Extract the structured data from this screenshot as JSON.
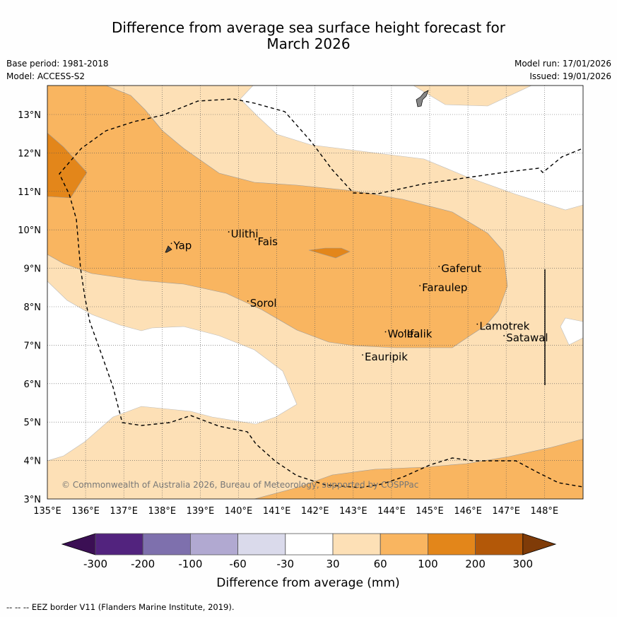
{
  "title_line1": "Difference from average sea surface height forecast for",
  "title_line2": "March 2026",
  "base_period": "Base period: 1981-2018",
  "model": "Model: ACCESS-S2",
  "model_run": "Model run: 17/01/2026",
  "issued": "Issued: 19/01/2026",
  "copyright": "© Commonwealth of Australia 2026, Bureau of Meteorology, supported by COSPPac",
  "lon_labels": [
    "135°E",
    "136°E",
    "137°E",
    "138°E",
    "139°E",
    "140°E",
    "141°E",
    "142°E",
    "143°E",
    "144°E",
    "145°E",
    "146°E",
    "147°E",
    "148°E"
  ],
  "lat_labels": [
    "13°N",
    "12°N",
    "11°N",
    "10°N",
    "9°N",
    "8°N",
    "7°N",
    "6°N",
    "5°N",
    "4°N",
    "3°N"
  ],
  "places": [
    {
      "name": "Yap",
      "lon": 138.3,
      "lat": 9.5
    },
    {
      "name": "Ulithi",
      "lon": 139.8,
      "lat": 9.8
    },
    {
      "name": "Fais",
      "lon": 140.5,
      "lat": 9.6
    },
    {
      "name": "Gaferut",
      "lon": 145.3,
      "lat": 8.9
    },
    {
      "name": "Faraulep",
      "lon": 144.8,
      "lat": 8.4
    },
    {
      "name": "Sorol",
      "lon": 140.3,
      "lat": 8.0
    },
    {
      "name": "Lamotrek",
      "lon": 146.3,
      "lat": 7.4
    },
    {
      "name": "Satawal",
      "lon": 147.0,
      "lat": 7.1
    },
    {
      "name": "Woleai",
      "lon": 143.9,
      "lat": 7.2
    },
    {
      "name": "Ifalik",
      "lon": 144.4,
      "lat": 7.2
    },
    {
      "name": "Eauripik",
      "lon": 143.3,
      "lat": 6.6
    }
  ],
  "colorbar": {
    "ticks": [
      "-300",
      "-200",
      "-100",
      "-60",
      "-30",
      "30",
      "60",
      "100",
      "200",
      "300"
    ],
    "colors": [
      "#3b0f54",
      "#52237e",
      "#7e70ad",
      "#b1a9d1",
      "#dadaeb",
      "#ffffff",
      "#fde0b6",
      "#f9b560",
      "#e3861a",
      "#b35808",
      "#7f3b08"
    ],
    "label": "Difference from average (mm)"
  },
  "footer": "--  --  -- EEZ border V11 (Flanders Marine Institute, 2019)."
}
